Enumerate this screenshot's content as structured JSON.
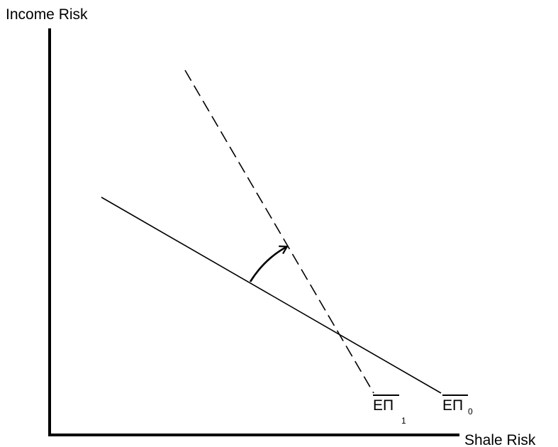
{
  "diagram": {
    "y_axis_label": "Income Risk",
    "x_axis_label": "Shale Risk",
    "lines": [
      {
        "label": "EΠ",
        "subscript": "0",
        "style": "solid"
      },
      {
        "label": "EΠ",
        "subscript": "1",
        "style": "dashed"
      }
    ],
    "annotation": "curved arrow indicating rotation from solid line to dashed line",
    "colors": {
      "ink": "#000000",
      "background": "#ffffff"
    }
  }
}
